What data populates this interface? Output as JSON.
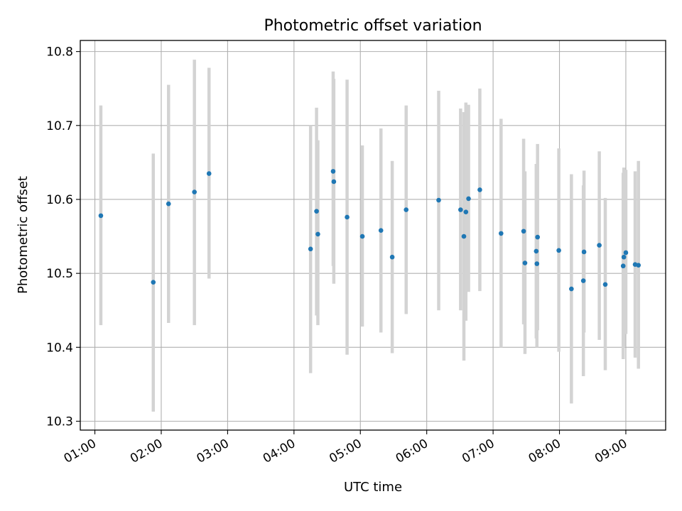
{
  "chart_data": {
    "type": "scatter",
    "title": "Photometric offset variation",
    "xlabel": "UTC time",
    "ylabel": "Photometric offset",
    "x_unit": "hours UTC",
    "xlim": [
      0.78,
      9.6
    ],
    "ylim": [
      10.288,
      10.815
    ],
    "x_ticks": [
      {
        "value": 1,
        "label": "01:00"
      },
      {
        "value": 2,
        "label": "02:00"
      },
      {
        "value": 3,
        "label": "03:00"
      },
      {
        "value": 4,
        "label": "04:00"
      },
      {
        "value": 5,
        "label": "05:00"
      },
      {
        "value": 6,
        "label": "06:00"
      },
      {
        "value": 7,
        "label": "07:00"
      },
      {
        "value": 8,
        "label": "08:00"
      },
      {
        "value": 9,
        "label": "09:00"
      }
    ],
    "y_ticks": [
      {
        "value": 10.3,
        "label": "10.3"
      },
      {
        "value": 10.4,
        "label": "10.4"
      },
      {
        "value": 10.5,
        "label": "10.5"
      },
      {
        "value": 10.6,
        "label": "10.6"
      },
      {
        "value": 10.7,
        "label": "10.7"
      },
      {
        "value": 10.8,
        "label": "10.8"
      }
    ],
    "grid": true,
    "colors": {
      "point": "#1f77b4",
      "errorbar": "#d3d3d3",
      "grid": "#b0b0b0"
    },
    "points": [
      {
        "x": 1.09,
        "y": 10.578,
        "ylow": 10.43,
        "yhigh": 10.727
      },
      {
        "x": 1.88,
        "y": 10.488,
        "ylow": 10.313,
        "yhigh": 10.662
      },
      {
        "x": 2.11,
        "y": 10.594,
        "ylow": 10.433,
        "yhigh": 10.755
      },
      {
        "x": 2.5,
        "y": 10.61,
        "ylow": 10.43,
        "yhigh": 10.789
      },
      {
        "x": 2.72,
        "y": 10.635,
        "ylow": 10.493,
        "yhigh": 10.778
      },
      {
        "x": 4.25,
        "y": 10.533,
        "ylow": 10.365,
        "yhigh": 10.7
      },
      {
        "x": 4.34,
        "y": 10.584,
        "ylow": 10.443,
        "yhigh": 10.724
      },
      {
        "x": 4.36,
        "y": 10.553,
        "ylow": 10.43,
        "yhigh": 10.68
      },
      {
        "x": 4.59,
        "y": 10.638,
        "ylow": 10.51,
        "yhigh": 10.773
      },
      {
        "x": 4.6,
        "y": 10.624,
        "ylow": 10.486,
        "yhigh": 10.763
      },
      {
        "x": 4.8,
        "y": 10.576,
        "ylow": 10.39,
        "yhigh": 10.762
      },
      {
        "x": 5.03,
        "y": 10.55,
        "ylow": 10.428,
        "yhigh": 10.673
      },
      {
        "x": 5.31,
        "y": 10.558,
        "ylow": 10.42,
        "yhigh": 10.696
      },
      {
        "x": 5.48,
        "y": 10.522,
        "ylow": 10.392,
        "yhigh": 10.652
      },
      {
        "x": 5.69,
        "y": 10.586,
        "ylow": 10.445,
        "yhigh": 10.727
      },
      {
        "x": 6.18,
        "y": 10.599,
        "ylow": 10.45,
        "yhigh": 10.747
      },
      {
        "x": 6.51,
        "y": 10.586,
        "ylow": 10.45,
        "yhigh": 10.723
      },
      {
        "x": 6.56,
        "y": 10.55,
        "ylow": 10.382,
        "yhigh": 10.718
      },
      {
        "x": 6.59,
        "y": 10.583,
        "ylow": 10.436,
        "yhigh": 10.731
      },
      {
        "x": 6.63,
        "y": 10.601,
        "ylow": 10.475,
        "yhigh": 10.728
      },
      {
        "x": 6.8,
        "y": 10.613,
        "ylow": 10.476,
        "yhigh": 10.75
      },
      {
        "x": 7.12,
        "y": 10.554,
        "ylow": 10.4,
        "yhigh": 10.709
      },
      {
        "x": 7.46,
        "y": 10.557,
        "ylow": 10.431,
        "yhigh": 10.682
      },
      {
        "x": 7.48,
        "y": 10.514,
        "ylow": 10.391,
        "yhigh": 10.638
      },
      {
        "x": 7.65,
        "y": 10.53,
        "ylow": 10.412,
        "yhigh": 10.648
      },
      {
        "x": 7.66,
        "y": 10.513,
        "ylow": 10.4,
        "yhigh": 10.626
      },
      {
        "x": 7.67,
        "y": 10.549,
        "ylow": 10.423,
        "yhigh": 10.675
      },
      {
        "x": 7.99,
        "y": 10.531,
        "ylow": 10.394,
        "yhigh": 10.669
      },
      {
        "x": 8.18,
        "y": 10.479,
        "ylow": 10.324,
        "yhigh": 10.634
      },
      {
        "x": 8.36,
        "y": 10.49,
        "ylow": 10.361,
        "yhigh": 10.619
      },
      {
        "x": 8.37,
        "y": 10.529,
        "ylow": 10.42,
        "yhigh": 10.639
      },
      {
        "x": 8.6,
        "y": 10.538,
        "ylow": 10.41,
        "yhigh": 10.665
      },
      {
        "x": 8.69,
        "y": 10.485,
        "ylow": 10.369,
        "yhigh": 10.602
      },
      {
        "x": 8.96,
        "y": 10.51,
        "ylow": 10.384,
        "yhigh": 10.636
      },
      {
        "x": 8.97,
        "y": 10.522,
        "ylow": 10.401,
        "yhigh": 10.643
      },
      {
        "x": 9.0,
        "y": 10.528,
        "ylow": 10.418,
        "yhigh": 10.64
      },
      {
        "x": 9.14,
        "y": 10.512,
        "ylow": 10.386,
        "yhigh": 10.638
      },
      {
        "x": 9.19,
        "y": 10.511,
        "ylow": 10.371,
        "yhigh": 10.652
      }
    ]
  }
}
